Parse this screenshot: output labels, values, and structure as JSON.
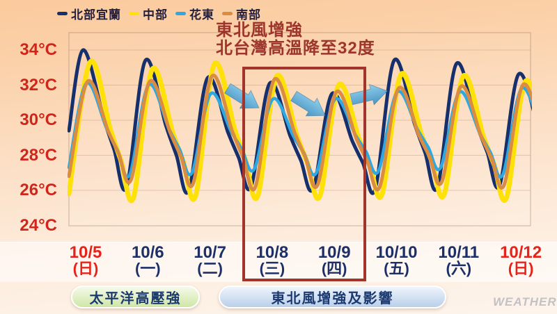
{
  "legend": {
    "items": [
      {
        "label": "北部宜蘭",
        "color": "#16306e",
        "key": "north-yilan"
      },
      {
        "label": "中部",
        "color": "#ffe10a",
        "key": "central"
      },
      {
        "label": "花東",
        "color": "#2fa8e0",
        "key": "hualien-taitung"
      },
      {
        "label": "南部",
        "color": "#d98c42",
        "key": "south"
      }
    ]
  },
  "annotation": {
    "line1": "東北風增強",
    "line2": "北台灣高溫降至32度",
    "color": "#9c362c"
  },
  "banners": {
    "green": "太平洋高壓強",
    "blue": "東北風增強及影響"
  },
  "watermark": "WEATHER",
  "colors": {
    "ytick": "#d1251b",
    "date_red": "#e6231a",
    "date_navy": "#1d2f66",
    "highlight_box": "#a2342c",
    "arrow": "#5fa9d3"
  },
  "chart_data": {
    "type": "line",
    "title": "",
    "ylabel": "temperature",
    "unit": "°C",
    "yticks": [
      34,
      32,
      30,
      28,
      26,
      24
    ],
    "ylim": [
      24,
      35
    ],
    "grid": true,
    "legend_position": "top",
    "categories": [
      {
        "date": "10/5",
        "weekday": "(日)",
        "color": "red"
      },
      {
        "date": "10/6",
        "weekday": "(一)",
        "color": "navy"
      },
      {
        "date": "10/7",
        "weekday": "(二)",
        "color": "navy"
      },
      {
        "date": "10/8",
        "weekday": "(三)",
        "color": "navy"
      },
      {
        "date": "10/9",
        "weekday": "(四)",
        "color": "navy"
      },
      {
        "date": "10/10",
        "weekday": "(五)",
        "color": "navy"
      },
      {
        "date": "10/11",
        "weekday": "(六)",
        "color": "navy"
      },
      {
        "date": "10/12",
        "weekday": "(日)",
        "color": "red"
      }
    ],
    "series": [
      {
        "name": "北部宜蘭",
        "key": "north-yilan",
        "color": "#16306e",
        "width": 5,
        "phase": -0.04,
        "start": 29.4,
        "daily_high": [
          34.0,
          33.4,
          32.4,
          32.1,
          31.5,
          33.4,
          33.2,
          32.6
        ],
        "nightly_low": [
          26.2,
          26.0,
          26.2,
          26.1,
          26.1,
          26.2,
          26.3
        ]
      },
      {
        "name": "中部",
        "key": "central",
        "color": "#ffe10a",
        "width": 7,
        "phase": 0.07,
        "start": 25.8,
        "daily_high": [
          33.3,
          32.9,
          33.2,
          32.5,
          32.0,
          32.6,
          32.5,
          32.2
        ],
        "nightly_low": [
          25.6,
          25.7,
          25.7,
          25.7,
          25.8,
          25.8,
          25.6
        ]
      },
      {
        "name": "花東",
        "key": "hualien-taitung",
        "color": "#2fa8e0",
        "width": 4.5,
        "phase": 0.01,
        "start": 27.3,
        "daily_high": [
          32.1,
          32.0,
          31.5,
          31.2,
          31.2,
          31.6,
          31.6,
          31.8
        ],
        "nightly_low": [
          26.9,
          27.0,
          27.2,
          27.0,
          27.1,
          27.3,
          26.9
        ]
      },
      {
        "name": "南部",
        "key": "south",
        "color": "#d98c42",
        "width": 5,
        "phase": 0.03,
        "start": 26.8,
        "daily_high": [
          32.2,
          32.2,
          32.5,
          32.3,
          31.6,
          31.8,
          31.9,
          32.0
        ],
        "nightly_low": [
          26.6,
          26.4,
          26.2,
          26.3,
          26.2,
          26.5,
          26.3
        ]
      }
    ],
    "highlight_box": {
      "from": "10/8",
      "to": "10/9"
    },
    "wind_arrows": 3
  }
}
